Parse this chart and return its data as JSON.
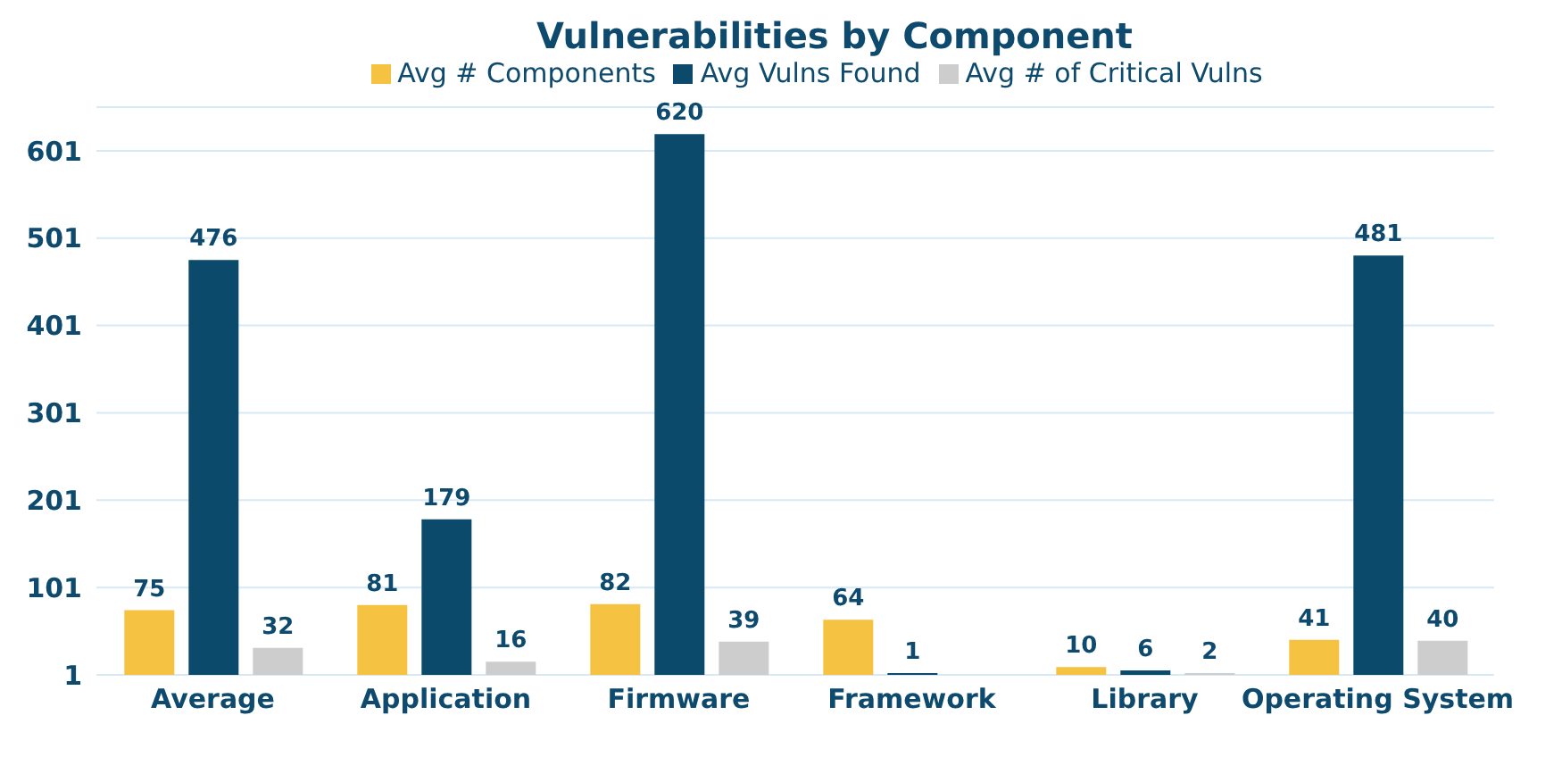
{
  "chart_data": {
    "type": "bar",
    "title": "Vulnerabilities by Component",
    "categories": [
      "Average",
      "Application",
      "Firmware",
      "Framework",
      "Library",
      "Operating System"
    ],
    "series": [
      {
        "name": "Avg # Components",
        "color": "#f5c242",
        "values": [
          75,
          81,
          82,
          64,
          10,
          41
        ]
      },
      {
        "name": "Avg Vulns Found",
        "color": "#0b4a6b",
        "values": [
          476,
          179,
          620,
          1,
          6,
          481
        ]
      },
      {
        "name": "Avg # of Critical Vulns",
        "color": "#cdcdcd",
        "values": [
          32,
          16,
          39,
          null,
          2,
          40
        ]
      }
    ],
    "ylim": [
      1,
      651
    ],
    "yticks": [
      1,
      101,
      201,
      301,
      401,
      501,
      601
    ],
    "grid": "y",
    "legend": "top",
    "data_labels": true
  }
}
